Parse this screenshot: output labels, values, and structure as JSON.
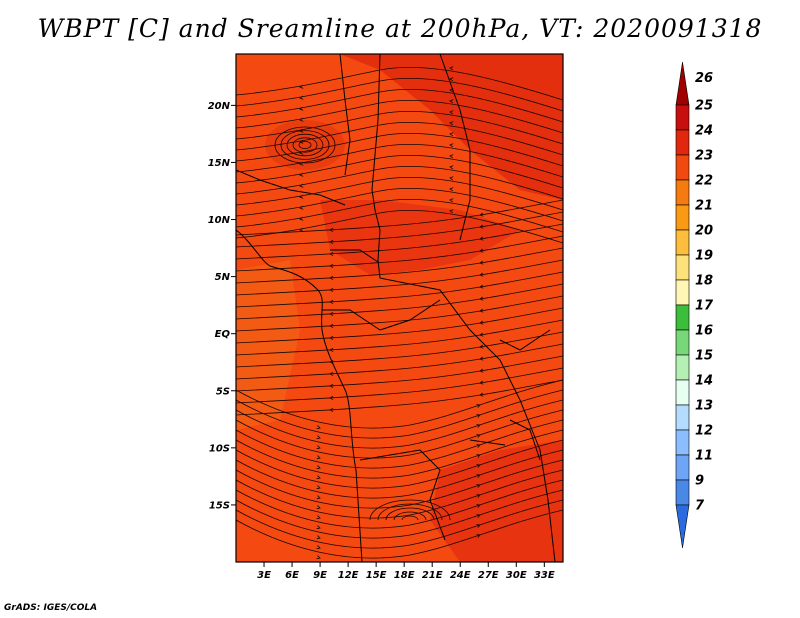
{
  "title": "WBPT [C] and Sreamline at 200hPa, VT: 2020091318",
  "credit": "GrADS: IGES/COLA",
  "map": {
    "lon_range": [
      0,
      35
    ],
    "lat_range": [
      -20,
      24.5
    ],
    "fill_color": "#f44a12",
    "lat_ticks": [
      {
        "label": "20N",
        "value": 20
      },
      {
        "label": "15N",
        "value": 15
      },
      {
        "label": "10N",
        "value": 10
      },
      {
        "label": "5N",
        "value": 5
      },
      {
        "label": "EQ",
        "value": 0
      },
      {
        "label": "5S",
        "value": -5
      },
      {
        "label": "10S",
        "value": -10
      },
      {
        "label": "15S",
        "value": -15
      }
    ],
    "lon_ticks": [
      {
        "label": "3E",
        "value": 3
      },
      {
        "label": "6E",
        "value": 6
      },
      {
        "label": "9E",
        "value": 9
      },
      {
        "label": "12E",
        "value": 12
      },
      {
        "label": "15E",
        "value": 15
      },
      {
        "label": "18E",
        "value": 18
      },
      {
        "label": "21E",
        "value": 21
      },
      {
        "label": "24E",
        "value": 24
      },
      {
        "label": "27E",
        "value": 27
      },
      {
        "label": "30E",
        "value": 30
      },
      {
        "label": "33E",
        "value": 33
      }
    ]
  },
  "colorbar": {
    "levels": [
      {
        "label": "26",
        "color": "#a00000"
      },
      {
        "label": "25",
        "color": "#c80f0f"
      },
      {
        "label": "24",
        "color": "#e1280f"
      },
      {
        "label": "23",
        "color": "#f04a10"
      },
      {
        "label": "22",
        "color": "#f57a10"
      },
      {
        "label": "21",
        "color": "#fa9a14"
      },
      {
        "label": "20",
        "color": "#fcbe3c"
      },
      {
        "label": "19",
        "color": "#fde17a"
      },
      {
        "label": "18",
        "color": "#fff5b4"
      },
      {
        "label": "17",
        "color": "#3cbe3c"
      },
      {
        "label": "16",
        "color": "#78d778"
      },
      {
        "label": "15",
        "color": "#b4f0b4"
      },
      {
        "label": "14",
        "color": "#e6fff0"
      },
      {
        "label": "13",
        "color": "#b4dcff"
      },
      {
        "label": "12",
        "color": "#8cbeff"
      },
      {
        "label": "11",
        "color": "#6ea6f5"
      },
      {
        "label": "9",
        "color": "#4a88e8"
      },
      {
        "label": "7",
        "color": "#2a6ce0"
      }
    ]
  }
}
